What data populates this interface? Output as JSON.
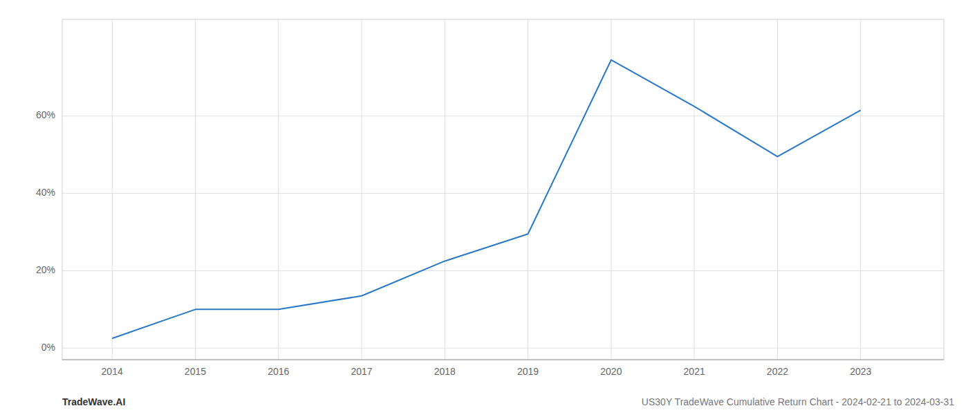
{
  "chart_data": {
    "type": "line",
    "x": [
      2014,
      2015,
      2016,
      2017,
      2018,
      2019,
      2020,
      2021,
      2022,
      2023
    ],
    "values": [
      0.025,
      0.1,
      0.1,
      0.135,
      0.225,
      0.295,
      0.745,
      0.625,
      0.495,
      0.615
    ],
    "color": "#2878c8",
    "xlim": [
      2013.4,
      2024.0
    ],
    "xticks": [
      2014,
      2015,
      2016,
      2017,
      2018,
      2019,
      2020,
      2021,
      2022,
      2023
    ],
    "ylim": [
      -0.03,
      0.85
    ],
    "yticks": [
      {
        "value": 0.0,
        "label": "0%"
      },
      {
        "value": 0.2,
        "label": "20%"
      },
      {
        "value": 0.4,
        "label": "40%"
      },
      {
        "value": 0.6,
        "label": "60%"
      }
    ],
    "grid": true,
    "annotations": [
      "TradeWave.AI",
      "US30Y TradeWave Cumulative Return Chart - 2024-02-21 to 2024-03-31"
    ]
  }
}
